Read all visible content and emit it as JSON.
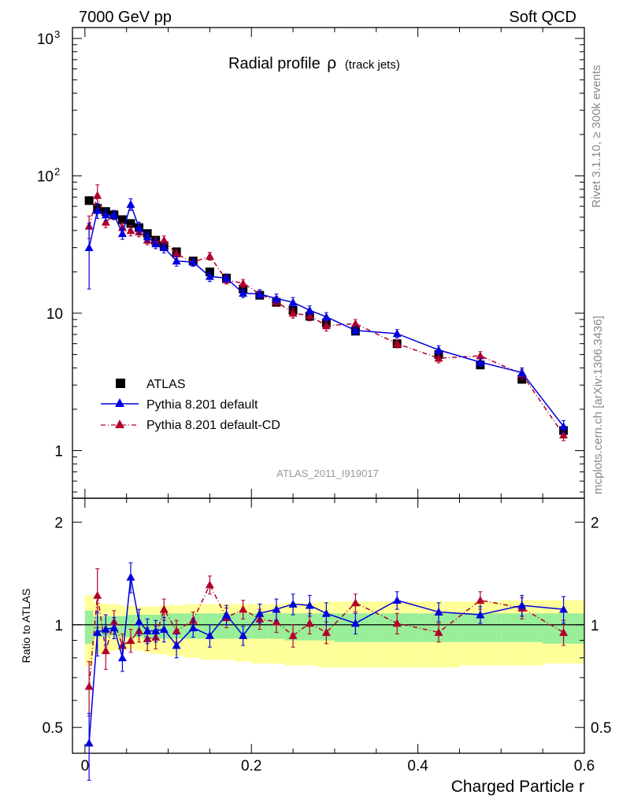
{
  "header": {
    "left": "7000 GeV pp",
    "right": "Soft QCD"
  },
  "side_labels": {
    "rivet": "Rivet 3.1.10, ≥ 300k events",
    "mcplots": "mcplots.cern.ch [arXiv:1306.3436]"
  },
  "chart_data": [
    {
      "type": "scatter",
      "title": "Radial profile",
      "title_symbol": "ρ",
      "title_suffix": "(track jets)",
      "watermark": "ATLAS_2011_I919017",
      "xlim": [
        -0.015,
        0.6
      ],
      "ylim": [
        0.45,
        1200
      ],
      "yscale": "log",
      "ytick_labels": [
        "1",
        "10"
      ],
      "legend_placement": "lower-left",
      "colors": {
        "data": "#000000",
        "default": "#0000dd",
        "default_cd": "#b0002a"
      },
      "x": [
        0.005,
        0.015,
        0.025,
        0.035,
        0.045,
        0.055,
        0.065,
        0.075,
        0.085,
        0.095,
        0.11,
        0.13,
        0.15,
        0.17,
        0.19,
        0.21,
        0.23,
        0.25,
        0.27,
        0.29,
        0.325,
        0.375,
        0.425,
        0.475,
        0.525,
        0.575
      ],
      "series": [
        {
          "name": "ATLAS",
          "marker": "square",
          "values": [
            66,
            58,
            55,
            52,
            48,
            45,
            42,
            38,
            34,
            31,
            28,
            24,
            20,
            18,
            15,
            13.5,
            12,
            10.5,
            9.5,
            8.5,
            7.4,
            6.0,
            5.0,
            4.2,
            3.3,
            1.4
          ]
        },
        {
          "name": "Pythia 8.201 default",
          "marker": "triangle",
          "line": "solid",
          "values": [
            30,
            56,
            52,
            52,
            38,
            62,
            42,
            36,
            32,
            30,
            24,
            23.5,
            18.5,
            18,
            14,
            13.8,
            12.8,
            12,
            10.5,
            9.4,
            7.5,
            7.1,
            5.4,
            4.4,
            3.7,
            1.5
          ],
          "errors": [
            15,
            7,
            5,
            4,
            3.5,
            6,
            4,
            3,
            2.5,
            2.5,
            2,
            1.5,
            1.5,
            1.3,
            1,
            1,
            1,
            1,
            0.8,
            0.7,
            0.5,
            0.5,
            0.4,
            0.3,
            0.3,
            0.15
          ]
        },
        {
          "name": "Pythia 8.201 default-CD",
          "marker": "triangle",
          "line": "dashdot",
          "values": [
            43,
            72,
            46,
            52,
            42,
            40,
            39,
            34,
            33,
            34,
            27,
            23.5,
            26,
            17.5,
            16.5,
            13.8,
            12.2,
            10,
            9.6,
            8.1,
            8.4,
            6.0,
            4.7,
            4.9,
            3.6,
            1.3
          ],
          "errors": [
            8,
            14,
            4,
            4,
            3.5,
            3.5,
            3,
            2.5,
            2.5,
            2.5,
            2,
            1.5,
            1.7,
            1.2,
            1.1,
            1,
            1,
            0.8,
            0.8,
            0.7,
            0.6,
            0.4,
            0.35,
            0.35,
            0.3,
            0.12
          ]
        }
      ]
    },
    {
      "type": "scatter",
      "xlabel": "Charged Particle r",
      "ylabel": "Ratio to ATLAS",
      "xlim": [
        -0.015,
        0.6
      ],
      "ylim": [
        0.42,
        2.35
      ],
      "yscale": "log",
      "ytick_labels": [
        "0.5",
        "1",
        "2"
      ],
      "xtick_labels": [
        "0",
        "0.2",
        "0.4",
        "0.6"
      ],
      "band_colors": {
        "inner": "#99ee99",
        "outer": "#ffff99"
      },
      "bands": {
        "edges": [
          0,
          0.01,
          0.02,
          0.03,
          0.04,
          0.05,
          0.06,
          0.07,
          0.08,
          0.09,
          0.1,
          0.12,
          0.14,
          0.16,
          0.18,
          0.2,
          0.22,
          0.24,
          0.26,
          0.28,
          0.3,
          0.35,
          0.4,
          0.45,
          0.5,
          0.55,
          0.6
        ],
        "inner_low": [
          0.88,
          0.92,
          0.92,
          0.93,
          0.92,
          0.92,
          0.92,
          0.91,
          0.91,
          0.91,
          0.91,
          0.91,
          0.91,
          0.91,
          0.91,
          0.91,
          0.91,
          0.9,
          0.9,
          0.9,
          0.89,
          0.89,
          0.89,
          0.89,
          0.89,
          0.88
        ],
        "inner_high": [
          1.1,
          1.06,
          1.06,
          1.06,
          1.06,
          1.07,
          1.07,
          1.07,
          1.07,
          1.08,
          1.08,
          1.08,
          1.08,
          1.08,
          1.08,
          1.08,
          1.08,
          1.08,
          1.08,
          1.08,
          1.08,
          1.08,
          1.08,
          1.08,
          1.08,
          1.08
        ],
        "outer_low": [
          0.76,
          0.82,
          0.83,
          0.84,
          0.84,
          0.85,
          0.84,
          0.83,
          0.82,
          0.82,
          0.81,
          0.8,
          0.79,
          0.79,
          0.78,
          0.77,
          0.77,
          0.76,
          0.76,
          0.75,
          0.75,
          0.75,
          0.75,
          0.76,
          0.76,
          0.77
        ],
        "outer_high": [
          1.22,
          1.16,
          1.15,
          1.15,
          1.14,
          1.14,
          1.13,
          1.13,
          1.13,
          1.14,
          1.14,
          1.15,
          1.15,
          1.15,
          1.15,
          1.15,
          1.15,
          1.16,
          1.16,
          1.17,
          1.17,
          1.17,
          1.17,
          1.17,
          1.18,
          1.18
        ]
      },
      "x": [
        0.005,
        0.015,
        0.025,
        0.035,
        0.045,
        0.055,
        0.065,
        0.075,
        0.085,
        0.095,
        0.11,
        0.13,
        0.15,
        0.17,
        0.19,
        0.21,
        0.23,
        0.25,
        0.27,
        0.29,
        0.325,
        0.375,
        0.425,
        0.475,
        0.525,
        0.575
      ],
      "series": [
        {
          "name": "Pythia 8.201 default",
          "values": [
            0.45,
            0.95,
            0.97,
            0.98,
            0.8,
            1.38,
            1.02,
            0.96,
            0.96,
            0.97,
            0.87,
            0.98,
            0.93,
            1.07,
            0.93,
            1.08,
            1.11,
            1.15,
            1.14,
            1.08,
            1.01,
            1.18,
            1.09,
            1.07,
            1.14,
            1.11
          ],
          "errors": [
            0.1,
            0.14,
            0.1,
            0.07,
            0.07,
            0.14,
            0.09,
            0.08,
            0.07,
            0.08,
            0.07,
            0.06,
            0.07,
            0.07,
            0.06,
            0.07,
            0.08,
            0.08,
            0.08,
            0.08,
            0.07,
            0.07,
            0.07,
            0.06,
            0.08,
            0.1
          ]
        },
        {
          "name": "Pythia 8.201 default-CD",
          "values": [
            0.66,
            1.22,
            0.84,
            1.02,
            0.87,
            0.9,
            0.96,
            0.91,
            0.92,
            1.11,
            0.96,
            1.03,
            1.31,
            1.05,
            1.11,
            1.04,
            1.02,
            0.93,
            1.01,
            0.95,
            1.16,
            1.01,
            0.95,
            1.18,
            1.12,
            0.95
          ],
          "errors": [
            0.12,
            0.24,
            0.1,
            0.08,
            0.07,
            0.07,
            0.07,
            0.07,
            0.07,
            0.08,
            0.07,
            0.06,
            0.08,
            0.07,
            0.07,
            0.07,
            0.07,
            0.07,
            0.07,
            0.07,
            0.07,
            0.07,
            0.06,
            0.07,
            0.08,
            0.08
          ]
        }
      ]
    }
  ]
}
